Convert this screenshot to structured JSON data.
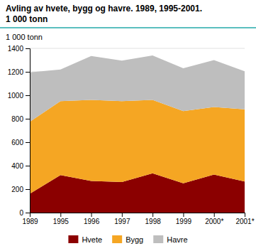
{
  "chart_data": {
    "type": "area",
    "stacked": true,
    "title": "Avling av hvete, bygg og havre. 1989, 1995-2001.",
    "subtitle": "1 000 tonn",
    "y_label": "1 000 tonn",
    "categories": [
      "1989",
      "1995",
      "1996",
      "1997",
      "1998",
      "1999",
      "2000*",
      "2001*"
    ],
    "series": [
      {
        "name": "Hvete",
        "color": "#8B0000",
        "values": [
          160,
          320,
          270,
          260,
          335,
          250,
          325,
          265
        ]
      },
      {
        "name": "Bygg",
        "color": "#F5A623",
        "values": [
          615,
          630,
          690,
          690,
          625,
          615,
          575,
          615
        ]
      },
      {
        "name": "Havre",
        "color": "#BEBEBE",
        "values": [
          420,
          270,
          375,
          345,
          380,
          365,
          400,
          325
        ]
      }
    ],
    "ylim": [
      0,
      1400
    ],
    "yticks": [
      0,
      200,
      400,
      600,
      800,
      1000,
      1200,
      1400
    ],
    "grid": true,
    "legend": "bottom"
  }
}
